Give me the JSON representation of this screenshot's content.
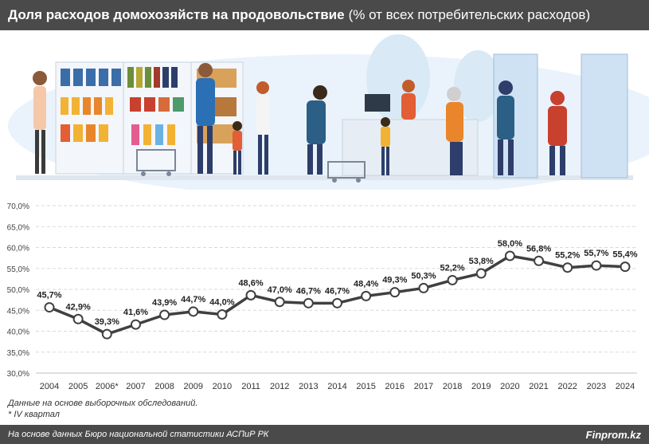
{
  "header": {
    "title": "Доля расходов домохозяйств на продовольствие",
    "subtitle": "(% от всех потребительских расходов)"
  },
  "chart_data": {
    "type": "line",
    "title": "Доля расходов домохозяйств на продовольствие",
    "subtitle": "(% от всех потребительских расходов)",
    "x": [
      "2004",
      "2005",
      "2006*",
      "2007",
      "2008",
      "2009",
      "2010",
      "2011",
      "2012",
      "2013",
      "2014",
      "2015",
      "2016",
      "2017",
      "2018",
      "2019",
      "2020",
      "2021",
      "2022",
      "2023",
      "2024"
    ],
    "values": [
      45.7,
      42.9,
      39.3,
      41.6,
      43.9,
      44.7,
      44.0,
      48.6,
      47.0,
      46.7,
      46.7,
      48.4,
      49.3,
      50.3,
      52.2,
      53.8,
      58.0,
      56.8,
      55.2,
      55.7,
      55.4
    ],
    "labels": [
      "45,7%",
      "42,9%",
      "39,3%",
      "41,6%",
      "43,9%",
      "44,7%",
      "44,0%",
      "48,6%",
      "47,0%",
      "46,7%",
      "46,7%",
      "48,4%",
      "49,3%",
      "50,3%",
      "52,2%",
      "53,8%",
      "58,0%",
      "56,8%",
      "55,2%",
      "55,7%",
      "55,4%"
    ],
    "yticks": [
      "30,0%",
      "35,0%",
      "40,0%",
      "45,0%",
      "50,0%",
      "55,0%",
      "60,0%",
      "65,0%",
      "70,0%"
    ],
    "ylim": [
      30,
      70
    ],
    "grid": true,
    "line_color": "#404040",
    "marker_fill": "#ffffff"
  },
  "notes": {
    "line1": "Данные на основе выборочных обследований.",
    "line2": "* IV квартал"
  },
  "footer": {
    "source": "На основе данных Бюро национальной статистики АСПиР РК",
    "brand": "Finprom.kz"
  }
}
